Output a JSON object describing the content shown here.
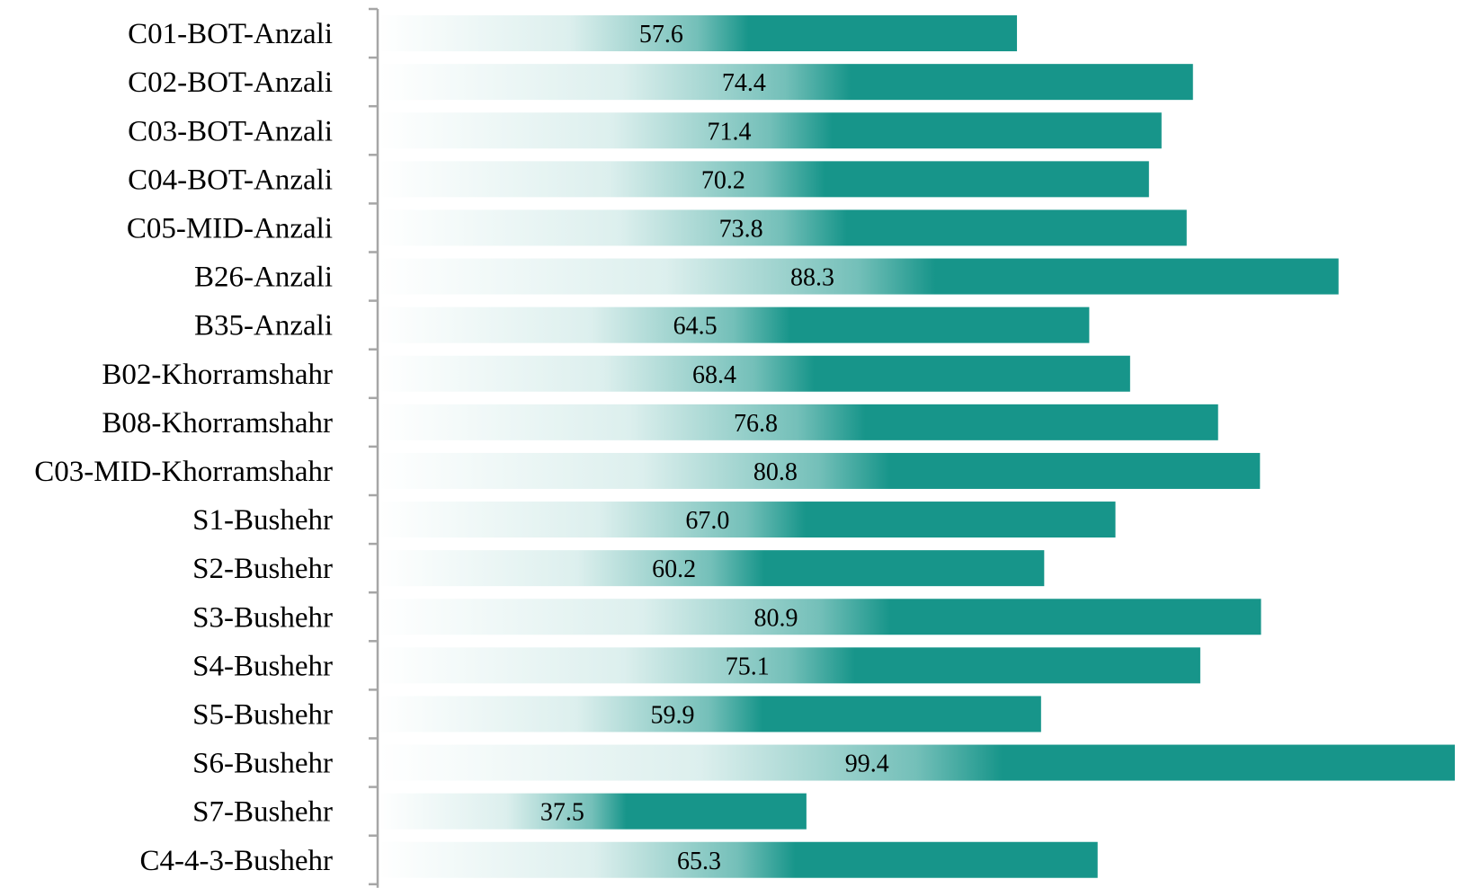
{
  "chart_data": {
    "type": "bar",
    "orientation": "horizontal",
    "categories": [
      "C01-BOT-Anzali",
      "C02-BOT-Anzali",
      "C03-BOT-Anzali",
      "C04-BOT-Anzali",
      "C05-MID-Anzali",
      "B26-Anzali",
      "B35-Anzali",
      "B02-Khorramshahr",
      "B08-Khorramshahr",
      "C03-MID-Khorramshahr",
      "S1-Bushehr",
      "S2-Bushehr",
      "S3-Bushehr",
      "S4-Bushehr",
      "S5-Bushehr",
      "S6-Bushehr",
      "S7-Bushehr",
      "C4-4-3-Bushehr"
    ],
    "values": [
      57.6,
      74.4,
      71.4,
      70.2,
      73.8,
      88.3,
      64.5,
      68.4,
      76.8,
      80.8,
      67.0,
      60.2,
      80.9,
      75.1,
      59.9,
      99.4,
      37.5,
      65.3
    ],
    "value_labels": [
      "57.6",
      "74.4",
      "71.4",
      "70.2",
      "73.8",
      "88.3",
      "64.5",
      "68.4",
      "76.8",
      "80.8",
      "67.0",
      "60.2",
      "80.9",
      "75.1",
      "59.9",
      "99.4",
      "37.5",
      "65.3"
    ],
    "title": "",
    "xlabel": "",
    "ylabel": "",
    "xlim": [
      0,
      100
    ],
    "grid": false,
    "legend": "none",
    "bar_color": "#17958a",
    "bar_fill_style": "gradient-from-white"
  }
}
